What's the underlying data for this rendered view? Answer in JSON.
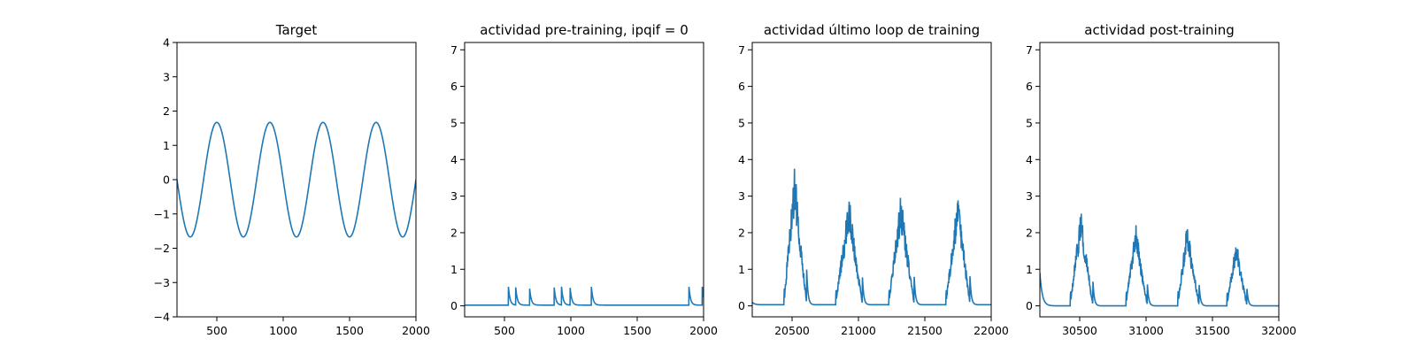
{
  "chart_data": [
    {
      "type": "line",
      "title": "Target",
      "xlim": [
        200,
        2000
      ],
      "ylim": [
        -4,
        4
      ],
      "xticks": [
        500,
        1000,
        1500,
        2000
      ],
      "xtick_labels": [
        "500",
        "1000",
        "1500",
        "2000"
      ],
      "yticks": [
        -4,
        -3,
        -2,
        -1,
        0,
        1,
        2,
        3,
        4
      ],
      "ytick_labels": [
        "−4",
        "−3",
        "−2",
        "−1",
        "0",
        "1",
        "2",
        "3",
        "4"
      ],
      "signal": {
        "kind": "sine",
        "amplitude": 1.67,
        "period": 400,
        "peak_at": 500
      },
      "grid": false,
      "color": "#1f77b4"
    },
    {
      "type": "line",
      "title": "actividad pre-training, ipqif = 0",
      "xlim": [
        200,
        2000
      ],
      "ylim": [
        -0.3,
        7.2
      ],
      "xticks": [
        500,
        1000,
        1500,
        2000
      ],
      "xtick_labels": [
        "500",
        "1000",
        "1500",
        "2000"
      ],
      "yticks": [
        0,
        1,
        2,
        3,
        4,
        5,
        6,
        7
      ],
      "ytick_labels": [
        "0",
        "1",
        "2",
        "3",
        "4",
        "5",
        "6",
        "7"
      ],
      "baseline": 0.02,
      "spikes": [
        {
          "x": 530,
          "height": 0.5
        },
        {
          "x": 585,
          "height": 0.48
        },
        {
          "x": 690,
          "height": 0.45
        },
        {
          "x": 875,
          "height": 0.48
        },
        {
          "x": 930,
          "height": 0.5
        },
        {
          "x": 995,
          "height": 0.47
        },
        {
          "x": 1155,
          "height": 0.5
        },
        {
          "x": 1890,
          "height": 0.5
        },
        {
          "x": 1990,
          "height": 0.5
        }
      ],
      "grid": false,
      "color": "#1f77b4"
    },
    {
      "type": "line",
      "title": "actividad último loop de training",
      "xlim": [
        20200,
        22000
      ],
      "ylim": [
        -0.3,
        7.2
      ],
      "xticks": [
        20500,
        21000,
        21500,
        22000
      ],
      "xtick_labels": [
        "20500",
        "21000",
        "21500",
        "22000"
      ],
      "yticks": [
        0,
        1,
        2,
        3,
        4,
        5,
        6,
        7
      ],
      "ytick_labels": [
        "0",
        "1",
        "2",
        "3",
        "4",
        "5",
        "6",
        "7"
      ],
      "baseline": 0.03,
      "start_value": 0.1,
      "bumps": [
        {
          "start": 20440,
          "peak_x": 20520,
          "peak": 3.2,
          "end": 20610
        },
        {
          "start": 20830,
          "peak_x": 20930,
          "peak": 2.5,
          "end": 21030
        },
        {
          "start": 21230,
          "peak_x": 21320,
          "peak": 2.55,
          "end": 21420
        },
        {
          "start": 21660,
          "peak_x": 21750,
          "peak": 2.6,
          "end": 21840
        }
      ],
      "grid": false,
      "color": "#1f77b4"
    },
    {
      "type": "line",
      "title": "actividad post-training",
      "xlim": [
        30200,
        32000
      ],
      "ylim": [
        -0.3,
        7.2
      ],
      "xticks": [
        30500,
        31000,
        31500,
        32000
      ],
      "xtick_labels": [
        "30500",
        "31000",
        "31500",
        "32000"
      ],
      "yticks": [
        0,
        1,
        2,
        3,
        4,
        5,
        6,
        7
      ],
      "ytick_labels": [
        "0",
        "1",
        "2",
        "3",
        "4",
        "5",
        "6",
        "7"
      ],
      "baseline": 0.0,
      "start_value": 0.9,
      "bumps": [
        {
          "start": 30430,
          "peak_x": 30510,
          "peak": 2.2,
          "end": 30600
        },
        {
          "start": 30850,
          "peak_x": 30920,
          "peak": 1.95,
          "end": 31010
        },
        {
          "start": 31240,
          "peak_x": 31310,
          "peak": 1.9,
          "end": 31400
        },
        {
          "start": 31610,
          "peak_x": 31680,
          "peak": 1.55,
          "end": 31760
        }
      ],
      "grid": false,
      "color": "#1f77b4"
    }
  ]
}
